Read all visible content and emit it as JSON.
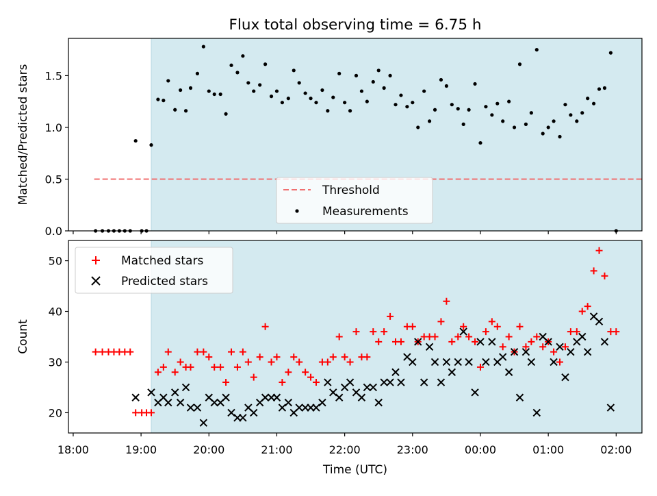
{
  "title": "Flux total observing time = 6.75 h",
  "chart_data": [
    {
      "type": "scatter",
      "panel": "top",
      "ylabel": "Matched/Predicted stars",
      "ylim": [
        0,
        1.86
      ],
      "yticks": [
        "0.0",
        "0.5",
        "1.0",
        "1.5"
      ],
      "threshold": {
        "name": "Threshold",
        "value": 0.5,
        "x_start": 18.31,
        "x_end": 31.92,
        "color": "#f07070"
      },
      "legend_placement": "lower-center",
      "shaded_region": {
        "x_start": 19.15,
        "x_end": 31.9,
        "color": "#d4eaf0"
      },
      "series": [
        {
          "name": "Measurements",
          "color": "#000000",
          "points": [
            [
              18.33,
              0
            ],
            [
              18.43,
              0
            ],
            [
              18.52,
              0
            ],
            [
              18.6,
              0
            ],
            [
              18.68,
              0
            ],
            [
              18.76,
              0
            ],
            [
              18.84,
              0
            ],
            [
              18.92,
              0.87
            ],
            [
              19.01,
              0
            ],
            [
              19.08,
              0
            ],
            [
              19.15,
              0.83
            ],
            [
              19.25,
              1.27
            ],
            [
              19.33,
              1.26
            ],
            [
              19.4,
              1.45
            ],
            [
              19.5,
              1.17
            ],
            [
              19.58,
              1.36
            ],
            [
              19.66,
              1.16
            ],
            [
              19.73,
              1.38
            ],
            [
              19.83,
              1.52
            ],
            [
              19.92,
              1.78
            ],
            [
              20.0,
              1.35
            ],
            [
              20.08,
              1.32
            ],
            [
              20.17,
              1.32
            ],
            [
              20.25,
              1.13
            ],
            [
              20.33,
              1.6
            ],
            [
              20.42,
              1.53
            ],
            [
              20.5,
              1.69
            ],
            [
              20.58,
              1.43
            ],
            [
              20.66,
              1.35
            ],
            [
              20.75,
              1.41
            ],
            [
              20.83,
              1.61
            ],
            [
              20.92,
              1.3
            ],
            [
              21.0,
              1.35
            ],
            [
              21.08,
              1.24
            ],
            [
              21.17,
              1.28
            ],
            [
              21.25,
              1.55
            ],
            [
              21.33,
              1.43
            ],
            [
              21.42,
              1.33
            ],
            [
              21.5,
              1.28
            ],
            [
              21.58,
              1.24
            ],
            [
              21.67,
              1.36
            ],
            [
              21.75,
              1.16
            ],
            [
              21.83,
              1.29
            ],
            [
              21.92,
              1.52
            ],
            [
              22.0,
              1.24
            ],
            [
              22.08,
              1.16
            ],
            [
              22.17,
              1.5
            ],
            [
              22.25,
              1.35
            ],
            [
              22.33,
              1.25
            ],
            [
              22.42,
              1.44
            ],
            [
              22.5,
              1.55
            ],
            [
              22.58,
              1.38
            ],
            [
              22.67,
              1.5
            ],
            [
              22.75,
              1.22
            ],
            [
              22.83,
              1.31
            ],
            [
              22.92,
              1.2
            ],
            [
              23.0,
              1.24
            ],
            [
              23.08,
              1.0
            ],
            [
              23.17,
              1.35
            ],
            [
              23.25,
              1.06
            ],
            [
              23.33,
              1.17
            ],
            [
              23.42,
              1.46
            ],
            [
              23.5,
              1.4
            ],
            [
              23.58,
              1.22
            ],
            [
              23.67,
              1.18
            ],
            [
              23.75,
              1.03
            ],
            [
              23.83,
              1.17
            ],
            [
              23.92,
              1.42
            ],
            [
              24.0,
              0.85
            ],
            [
              24.08,
              1.2
            ],
            [
              24.17,
              1.12
            ],
            [
              24.25,
              1.23
            ],
            [
              24.33,
              1.06
            ],
            [
              24.42,
              1.25
            ],
            [
              24.5,
              1.0
            ],
            [
              24.58,
              1.61
            ],
            [
              24.67,
              1.03
            ],
            [
              24.75,
              1.14
            ],
            [
              24.83,
              1.75
            ],
            [
              24.92,
              0.94
            ],
            [
              25.0,
              1.0
            ],
            [
              25.08,
              1.06
            ],
            [
              25.17,
              0.91
            ],
            [
              25.25,
              1.22
            ],
            [
              25.33,
              1.12
            ],
            [
              25.42,
              1.06
            ],
            [
              25.5,
              1.14
            ],
            [
              25.58,
              1.28
            ],
            [
              25.67,
              1.23
            ],
            [
              25.75,
              1.37
            ],
            [
              25.83,
              1.38
            ],
            [
              25.92,
              1.72
            ],
            [
              26.0,
              0
            ]
          ]
        }
      ]
    },
    {
      "type": "scatter",
      "panel": "bottom",
      "xlabel": "Time (UTC)",
      "ylabel": "Count",
      "ylim": [
        16,
        54
      ],
      "yticks": [
        "20",
        "30",
        "40",
        "50"
      ],
      "xlim": [
        17.93,
        26.38
      ],
      "xticks": [
        "18:00",
        "19:00",
        "20:00",
        "21:00",
        "22:00",
        "23:00",
        "00:00",
        "01:00",
        "02:00"
      ],
      "legend_placement": "upper-left",
      "shaded_region": {
        "x_start": 19.15,
        "x_end": 31.9,
        "color": "#d4eaf0"
      },
      "series": [
        {
          "name": "Matched stars",
          "marker": "plus",
          "color": "#ff0000",
          "points": [
            [
              18.33,
              32
            ],
            [
              18.43,
              32
            ],
            [
              18.52,
              32
            ],
            [
              18.6,
              32
            ],
            [
              18.68,
              32
            ],
            [
              18.76,
              32
            ],
            [
              18.84,
              32
            ],
            [
              18.92,
              20
            ],
            [
              19.01,
              20
            ],
            [
              19.08,
              20
            ],
            [
              19.15,
              20
            ],
            [
              19.25,
              28
            ],
            [
              19.33,
              29
            ],
            [
              19.4,
              32
            ],
            [
              19.5,
              28
            ],
            [
              19.58,
              30
            ],
            [
              19.66,
              29
            ],
            [
              19.73,
              29
            ],
            [
              19.83,
              32
            ],
            [
              19.92,
              32
            ],
            [
              20.0,
              31
            ],
            [
              20.08,
              29
            ],
            [
              20.17,
              29
            ],
            [
              20.25,
              26
            ],
            [
              20.33,
              32
            ],
            [
              20.42,
              29
            ],
            [
              20.5,
              32
            ],
            [
              20.58,
              30
            ],
            [
              20.66,
              27
            ],
            [
              20.75,
              31
            ],
            [
              20.83,
              37
            ],
            [
              20.92,
              30
            ],
            [
              21.0,
              31
            ],
            [
              21.08,
              26
            ],
            [
              21.17,
              28
            ],
            [
              21.25,
              31
            ],
            [
              21.33,
              30
            ],
            [
              21.42,
              28
            ],
            [
              21.5,
              27
            ],
            [
              21.58,
              26
            ],
            [
              21.67,
              30
            ],
            [
              21.75,
              30
            ],
            [
              21.83,
              31
            ],
            [
              21.92,
              35
            ],
            [
              22.0,
              31
            ],
            [
              22.08,
              30
            ],
            [
              22.17,
              36
            ],
            [
              22.25,
              31
            ],
            [
              22.33,
              31
            ],
            [
              22.42,
              36
            ],
            [
              22.5,
              34
            ],
            [
              22.58,
              36
            ],
            [
              22.67,
              39
            ],
            [
              22.75,
              34
            ],
            [
              22.83,
              34
            ],
            [
              22.92,
              37
            ],
            [
              23.0,
              37
            ],
            [
              23.08,
              34
            ],
            [
              23.17,
              35
            ],
            [
              23.25,
              35
            ],
            [
              23.33,
              35
            ],
            [
              23.42,
              38
            ],
            [
              23.5,
              42
            ],
            [
              23.58,
              34
            ],
            [
              23.67,
              35
            ],
            [
              23.75,
              37
            ],
            [
              23.83,
              35
            ],
            [
              23.92,
              34
            ],
            [
              24.0,
              29
            ],
            [
              24.08,
              36
            ],
            [
              24.17,
              38
            ],
            [
              24.25,
              37
            ],
            [
              24.33,
              33
            ],
            [
              24.42,
              35
            ],
            [
              24.5,
              32
            ],
            [
              24.58,
              37
            ],
            [
              24.67,
              33
            ],
            [
              24.75,
              34
            ],
            [
              24.83,
              35
            ],
            [
              24.92,
              33
            ],
            [
              25.0,
              34
            ],
            [
              25.08,
              32
            ],
            [
              25.17,
              30
            ],
            [
              25.25,
              33
            ],
            [
              25.33,
              36
            ],
            [
              25.42,
              36
            ],
            [
              25.5,
              40
            ],
            [
              25.58,
              41
            ],
            [
              25.67,
              48
            ],
            [
              25.75,
              52
            ],
            [
              25.83,
              47
            ],
            [
              25.92,
              36
            ],
            [
              26.0,
              36
            ]
          ]
        },
        {
          "name": "Predicted stars",
          "marker": "x",
          "color": "#000000",
          "points": [
            [
              18.92,
              23
            ],
            [
              19.15,
              24
            ],
            [
              19.25,
              22
            ],
            [
              19.33,
              23
            ],
            [
              19.4,
              22
            ],
            [
              19.5,
              24
            ],
            [
              19.58,
              22
            ],
            [
              19.66,
              25
            ],
            [
              19.73,
              21
            ],
            [
              19.83,
              21
            ],
            [
              19.92,
              18
            ],
            [
              20.0,
              23
            ],
            [
              20.08,
              22
            ],
            [
              20.17,
              22
            ],
            [
              20.25,
              23
            ],
            [
              20.33,
              20
            ],
            [
              20.42,
              19
            ],
            [
              20.5,
              19
            ],
            [
              20.58,
              21
            ],
            [
              20.66,
              20
            ],
            [
              20.75,
              22
            ],
            [
              20.83,
              23
            ],
            [
              20.92,
              23
            ],
            [
              21.0,
              23
            ],
            [
              21.08,
              21
            ],
            [
              21.17,
              22
            ],
            [
              21.25,
              20
            ],
            [
              21.33,
              21
            ],
            [
              21.42,
              21
            ],
            [
              21.5,
              21
            ],
            [
              21.58,
              21
            ],
            [
              21.67,
              22
            ],
            [
              21.75,
              26
            ],
            [
              21.83,
              24
            ],
            [
              21.92,
              23
            ],
            [
              22.0,
              25
            ],
            [
              22.08,
              26
            ],
            [
              22.17,
              24
            ],
            [
              22.25,
              23
            ],
            [
              22.33,
              25
            ],
            [
              22.42,
              25
            ],
            [
              22.5,
              22
            ],
            [
              22.58,
              26
            ],
            [
              22.67,
              26
            ],
            [
              22.75,
              28
            ],
            [
              22.83,
              26
            ],
            [
              22.92,
              31
            ],
            [
              23.0,
              30
            ],
            [
              23.08,
              34
            ],
            [
              23.17,
              26
            ],
            [
              23.25,
              33
            ],
            [
              23.33,
              30
            ],
            [
              23.42,
              26
            ],
            [
              23.5,
              30
            ],
            [
              23.58,
              28
            ],
            [
              23.67,
              30
            ],
            [
              23.75,
              36
            ],
            [
              23.83,
              30
            ],
            [
              23.92,
              24
            ],
            [
              24.0,
              34
            ],
            [
              24.08,
              30
            ],
            [
              24.17,
              34
            ],
            [
              24.25,
              30
            ],
            [
              24.33,
              31
            ],
            [
              24.42,
              28
            ],
            [
              24.5,
              32
            ],
            [
              24.58,
              23
            ],
            [
              24.67,
              32
            ],
            [
              24.75,
              30
            ],
            [
              24.83,
              20
            ],
            [
              24.92,
              35
            ],
            [
              25.0,
              34
            ],
            [
              25.08,
              30
            ],
            [
              25.17,
              33
            ],
            [
              25.25,
              27
            ],
            [
              25.33,
              32
            ],
            [
              25.42,
              34
            ],
            [
              25.5,
              35
            ],
            [
              25.58,
              32
            ],
            [
              25.67,
              39
            ],
            [
              25.75,
              38
            ],
            [
              25.83,
              34
            ],
            [
              25.92,
              21
            ]
          ]
        }
      ]
    }
  ]
}
